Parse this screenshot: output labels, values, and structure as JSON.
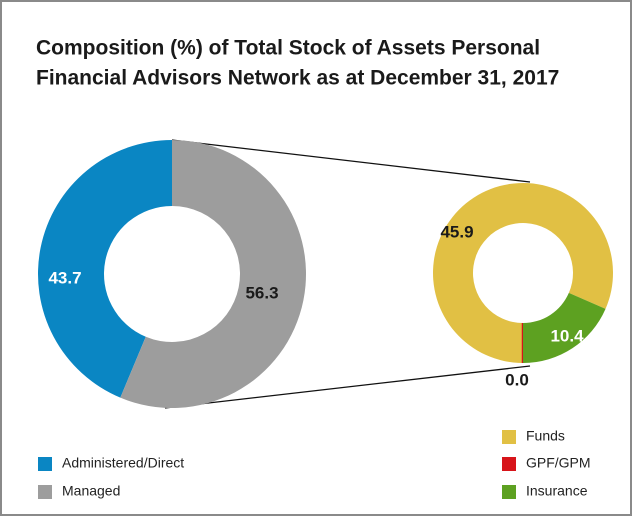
{
  "chart_data": [
    {
      "type": "donut",
      "title": [
        "Composition (%) of Total Stock of Assets Personal",
        "Financial Advisors Network as at December 31, 2017"
      ],
      "categories": [
        "Administered/Direct",
        "Managed"
      ],
      "values": [
        43.7,
        56.3
      ],
      "colors": [
        "#0a86c3",
        "#9d9d9d"
      ]
    },
    {
      "type": "donut",
      "categories": [
        "Funds",
        "GPF/GPM",
        "Insurance"
      ],
      "values": [
        45.9,
        0.0,
        10.4
      ],
      "value_labels": [
        "45.9",
        "0.0",
        "10.4"
      ],
      "colors": [
        "#e1c044",
        "#d7141a",
        "#5da121"
      ]
    }
  ]
}
